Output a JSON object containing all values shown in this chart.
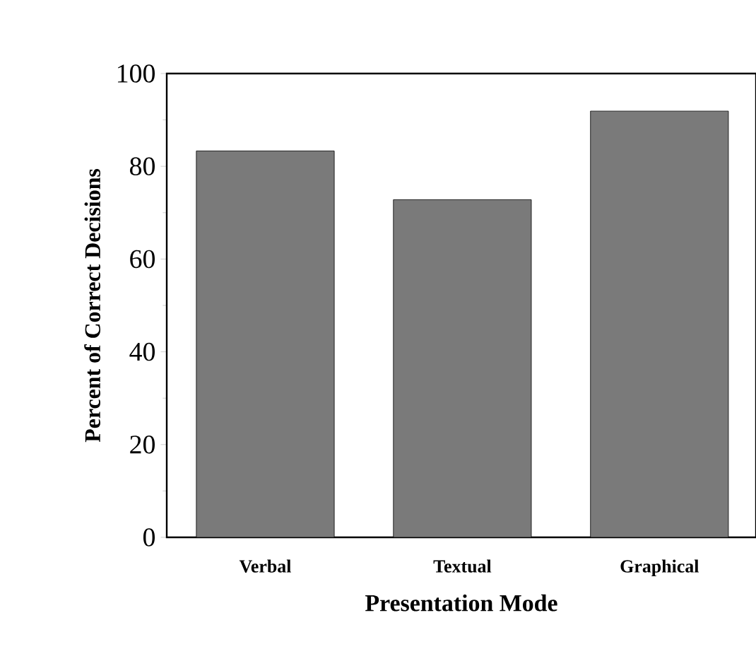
{
  "chart_data": {
    "type": "bar",
    "xlabel": "Presentation Mode",
    "ylabel": "Percent of Correct Decisions",
    "categories": [
      "Verbal",
      "Textual",
      "Graphical"
    ],
    "values": [
      83.3,
      72.8,
      91.9
    ],
    "color": "#7a7a7a",
    "ylim": [
      0,
      100
    ],
    "yticks": [
      0,
      20,
      40,
      60,
      80,
      100
    ],
    "grid": false
  }
}
